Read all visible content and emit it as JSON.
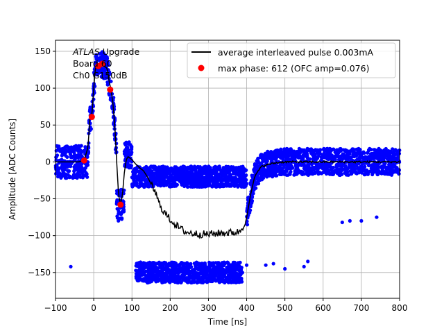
{
  "chart_data": {
    "type": "scatter",
    "title": "",
    "xlabel": "Time [ns]",
    "ylabel": "Amplitude [ADC Counts]",
    "xlim": [
      -100,
      800
    ],
    "ylim": [
      -185,
      165
    ],
    "x_ticks": [
      -100,
      0,
      100,
      200,
      300,
      400,
      500,
      600,
      700,
      800
    ],
    "y_ticks": [
      -150,
      -100,
      -50,
      0,
      50,
      100,
      150
    ],
    "x_tick_labels": [
      "−100",
      "0",
      "100",
      "200",
      "300",
      "400",
      "500",
      "600",
      "700",
      "800"
    ],
    "y_tick_labels": [
      "−150",
      "−100",
      "−50",
      "0",
      "50",
      "100",
      "150"
    ],
    "grid": true,
    "legend_position": "top-right",
    "annotation": {
      "italic": "ATLAS",
      "line1_rest": " Upgrade",
      "line2": " Board 60",
      "line3": " Ch0 G150dB"
    },
    "series": [
      {
        "name": "average interleaved pulse 0.003mA",
        "kind": "line",
        "color": "#000000",
        "x": [
          -100,
          -70,
          -40,
          -25,
          -15,
          -10,
          -5,
          0,
          5,
          10,
          15,
          20,
          25,
          30,
          35,
          40,
          45,
          50,
          55,
          60,
          65,
          70,
          75,
          80,
          85,
          90,
          95,
          100,
          110,
          120,
          130,
          140,
          150,
          160,
          170,
          180,
          190,
          200,
          220,
          240,
          260,
          280,
          300,
          320,
          340,
          360,
          380,
          390,
          400,
          410,
          420,
          430,
          440,
          460,
          480,
          500,
          550,
          600,
          650,
          700,
          750,
          800
        ],
        "y": [
          0,
          0,
          0,
          2,
          20,
          60,
          62,
          100,
          130,
          132,
          133,
          132,
          131,
          129,
          127,
          110,
          98,
          80,
          50,
          0,
          -45,
          -57,
          -45,
          -15,
          3,
          7,
          5,
          3,
          -3,
          -8,
          -12,
          -20,
          -30,
          -40,
          -55,
          -65,
          -72,
          -78,
          -88,
          -95,
          -97,
          -98,
          -98,
          -97,
          -96,
          -96,
          -95,
          -88,
          -75,
          -45,
          -22,
          -12,
          -6,
          -3,
          -1,
          0,
          0,
          0,
          0,
          0,
          0,
          0
        ]
      },
      {
        "name": "max phase: 612 (OFC amp=0.076)",
        "kind": "points",
        "color": "#ff0000",
        "x": [
          -25,
          -5,
          12,
          22,
          43,
          70
        ],
        "y": [
          2,
          61,
          130,
          133,
          98,
          -58
        ]
      },
      {
        "name": "",
        "kind": "scatter-bands",
        "color": "#0000ff",
        "bands": [
          {
            "x": [
              -100,
              -15
            ],
            "center": 0,
            "halfwidth": 22
          },
          {
            "x": [
              -15,
              60
            ],
            "follow": "average",
            "halfwidth": 18
          },
          {
            "x": [
              60,
              80
            ],
            "center": -58,
            "halfwidth": 22
          },
          {
            "x": [
              80,
              100
            ],
            "center": 10,
            "halfwidth": 18
          },
          {
            "x": [
              100,
              400
            ],
            "center": -20,
            "halfwidth": 14
          },
          {
            "x": [
              400,
              800
            ],
            "follow": "average",
            "halfwidth": 18
          },
          {
            "x": [
              110,
              390
            ],
            "center": -150,
            "halfwidth": 14
          }
        ],
        "outliers": {
          "x": [
            -60,
            400,
            450,
            470,
            500,
            550,
            560,
            650,
            670,
            700,
            740
          ],
          "y": [
            -142,
            -140,
            -140,
            -138,
            -145,
            -142,
            -135,
            -82,
            -80,
            -80,
            -75
          ]
        }
      }
    ]
  }
}
